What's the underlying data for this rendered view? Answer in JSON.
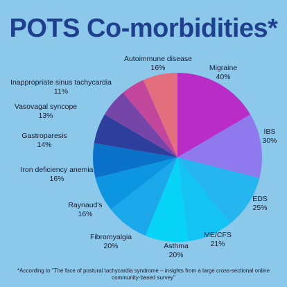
{
  "title": "POTS Co-morbidities*",
  "footnote": "*According to \"The face of postural tachycardia syndrome – insights from a large cross-sectional online community-based survey\"",
  "chart_data": {
    "type": "pie",
    "title": "POTS Co-morbidities*",
    "series": [
      {
        "name": "Migraine",
        "value": 40,
        "label": "40%",
        "color": "#b92cc6"
      },
      {
        "name": "IBS",
        "value": 30,
        "label": "30%",
        "color": "#8e79ee"
      },
      {
        "name": "EDS",
        "value": 25,
        "label": "25%",
        "color": "#26b6ef"
      },
      {
        "name": "ME/CFS",
        "value": 21,
        "label": "21%",
        "color": "#12c3f4"
      },
      {
        "name": "Asthma",
        "value": 20,
        "label": "20%",
        "color": "#07d3f6"
      },
      {
        "name": "Fibromyalgia",
        "value": 20,
        "label": "20%",
        "color": "#1aa8ea"
      },
      {
        "name": "Raynaud's",
        "value": 16,
        "label": "16%",
        "color": "#0c95e0"
      },
      {
        "name": "Iron deficiency anemia",
        "value": 16,
        "label": "16%",
        "color": "#0a72c8"
      },
      {
        "name": "Gastroparesis",
        "value": 14,
        "label": "14%",
        "color": "#2d3e9c"
      },
      {
        "name": "Vasovagal syncope",
        "value": 13,
        "label": "13%",
        "color": "#7545a8"
      },
      {
        "name": "Inappropriate sinus tachycardia",
        "value": 11,
        "label": "11%",
        "color": "#c2479c"
      },
      {
        "name": "Autoimmune disease",
        "value": 16,
        "label": "16%",
        "color": "#e36e7d"
      }
    ]
  }
}
